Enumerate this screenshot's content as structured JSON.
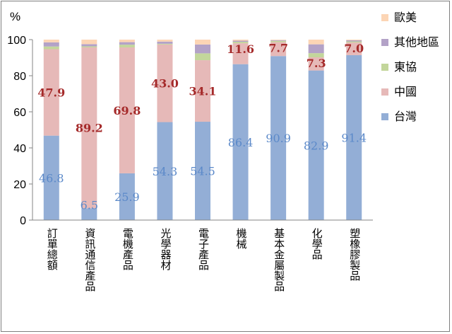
{
  "chart_data": {
    "type": "bar",
    "stacked": true,
    "ylabel": "%",
    "ylim": [
      0,
      100
    ],
    "yticks": [
      0,
      20,
      40,
      60,
      80,
      100
    ],
    "grid": false,
    "legend_position": "right",
    "categories": [
      "訂單總額",
      "資訊通信產品",
      "電機產品",
      "光學器材",
      "電子產品",
      "機械",
      "基本金屬製品",
      "化學品",
      "塑橡膠製品"
    ],
    "series": [
      {
        "name": "台灣",
        "color": "#93aed6",
        "label_color": "#5b89c9",
        "values": [
          46.8,
          6.5,
          25.9,
          54.3,
          54.5,
          86.4,
          90.9,
          82.9,
          91.4
        ],
        "labels": [
          "46.8",
          "6.5",
          "25.9",
          "54.3",
          "54.5",
          "86.4",
          "90.9",
          "82.9",
          "91.4"
        ]
      },
      {
        "name": "中國",
        "color": "#e6b9b8",
        "label_color": "#a52a2a",
        "values": [
          47.9,
          89.2,
          69.8,
          43.0,
          34.1,
          11.6,
          7.7,
          7.3,
          7.0
        ],
        "labels": [
          "47.9",
          "89.2",
          "69.8",
          "43.0",
          "34.1",
          "11.6",
          "7.7",
          "7.3",
          "7.0"
        ]
      },
      {
        "name": "東協",
        "color": "#c3d69b",
        "values": [
          1.5,
          0.6,
          1.5,
          0.4,
          3.8,
          0.8,
          0.7,
          2.3,
          0.6
        ]
      },
      {
        "name": "其他地區",
        "color": "#b3a2c7",
        "values": [
          2.3,
          1.2,
          1.4,
          1.2,
          4.9,
          0.6,
          0.4,
          4.9,
          0.6
        ]
      },
      {
        "name": "歐美",
        "color": "#fcd5b5",
        "values": [
          1.5,
          2.5,
          1.4,
          1.1,
          2.7,
          0.6,
          0.3,
          2.6,
          0.4
        ]
      }
    ],
    "legend_order": [
      "歐美",
      "其他地區",
      "東協",
      "中國",
      "台灣"
    ]
  }
}
